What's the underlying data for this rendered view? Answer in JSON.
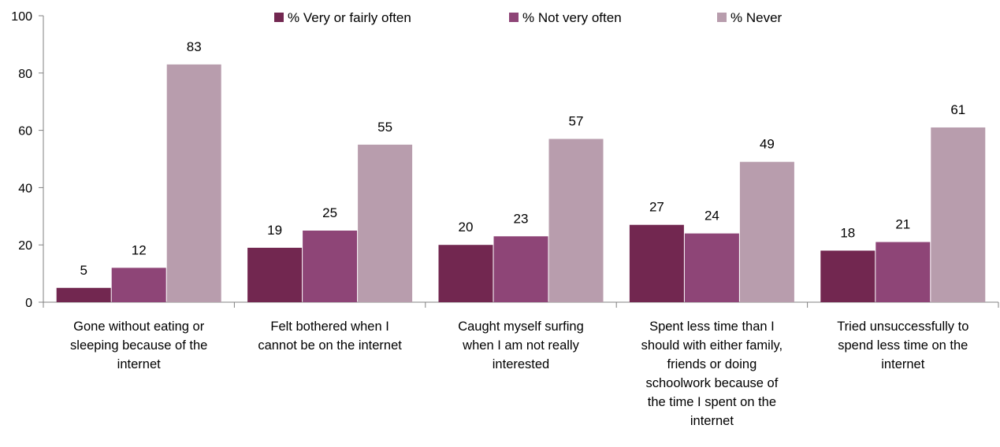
{
  "chart_data": {
    "type": "bar",
    "title": "",
    "xlabel": "",
    "ylabel": "",
    "ylim": [
      0,
      100
    ],
    "yticks": [
      0,
      20,
      40,
      60,
      80,
      100
    ],
    "grid": false,
    "legend_position": "top",
    "categories": [
      "Gone without eating or sleeping because of the internet",
      "Felt bothered when I cannot be on the internet",
      "Caught myself surfing when I am not really interested",
      "Spent less time than I should with either family, friends or doing schoolwork because of the time I spent on the internet",
      "Tried unsuccessfully to spend less time on the internet"
    ],
    "category_lines": [
      [
        "Gone without eating or",
        "sleeping because of the",
        "internet"
      ],
      [
        "Felt bothered when I",
        "cannot be on the internet"
      ],
      [
        "Caught myself surfing",
        "when I am not really",
        "interested"
      ],
      [
        "Spent less time than I",
        "should with either family,",
        "friends or doing",
        "schoolwork because of",
        "the time I spent on the",
        "internet"
      ],
      [
        "Tried unsuccessfully to",
        "spend less time on the",
        "internet"
      ]
    ],
    "series": [
      {
        "name": "% Very or fairly often",
        "color": "#722750",
        "values": [
          5,
          19,
          20,
          27,
          18
        ]
      },
      {
        "name": "% Not very often",
        "color": "#8e4577",
        "values": [
          12,
          25,
          23,
          24,
          21
        ]
      },
      {
        "name": "% Never",
        "color": "#b89dad",
        "values": [
          83,
          55,
          57,
          49,
          61
        ]
      }
    ]
  }
}
